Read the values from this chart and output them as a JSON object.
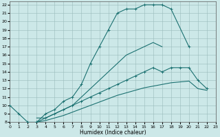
{
  "xlabel": "Humidex (Indice chaleur)",
  "bg_color": "#cce8e8",
  "grid_color": "#99bbbb",
  "line_color": "#1a7070",
  "xlim": [
    0,
    23
  ],
  "ylim": [
    8,
    22.4
  ],
  "xticks": [
    0,
    1,
    2,
    3,
    4,
    5,
    6,
    7,
    8,
    9,
    10,
    11,
    12,
    13,
    14,
    15,
    16,
    17,
    18,
    19,
    20,
    21,
    22,
    23
  ],
  "yticks": [
    8,
    9,
    10,
    11,
    12,
    13,
    14,
    15,
    16,
    17,
    18,
    19,
    20,
    21,
    22
  ],
  "s1_x": [
    0,
    1,
    2,
    3,
    4,
    5,
    6,
    7,
    8,
    9,
    10,
    11,
    12,
    13,
    14,
    15,
    16,
    17,
    18,
    20
  ],
  "s1_y": [
    10,
    9,
    8,
    8,
    9,
    9.5,
    10.5,
    11,
    12.5,
    15,
    17,
    19,
    21,
    21.5,
    21.5,
    22,
    22,
    22,
    21.5,
    17
  ],
  "s2_x": [
    3,
    4,
    5,
    6,
    7,
    8,
    9,
    10,
    11,
    12,
    13,
    14,
    15,
    16,
    17
  ],
  "s2_y": [
    8.5,
    8.5,
    9,
    9.5,
    10,
    11,
    12,
    13,
    14,
    15,
    16,
    16.5,
    17,
    17.5,
    17
  ],
  "s3_x": [
    3,
    4,
    5,
    6,
    7,
    8,
    9,
    10,
    11,
    12,
    13,
    14,
    15,
    16,
    17,
    18,
    19,
    20,
    21,
    22
  ],
  "s3_y": [
    8,
    8.5,
    9,
    9.5,
    10,
    10.5,
    11,
    11.5,
    12,
    12.5,
    13,
    13.5,
    14,
    14.5,
    14,
    14.5,
    14.5,
    14.5,
    13,
    12
  ],
  "s4_x": [
    3,
    4,
    5,
    6,
    7,
    8,
    9,
    10,
    11,
    12,
    13,
    14,
    15,
    16,
    17,
    18,
    19,
    20,
    21,
    22
  ],
  "s4_y": [
    8,
    8.2,
    8.5,
    8.8,
    9.2,
    9.6,
    10.0,
    10.4,
    10.8,
    11.2,
    11.5,
    11.8,
    12.1,
    12.3,
    12.5,
    12.7,
    12.8,
    12.9,
    12.0,
    11.8
  ]
}
